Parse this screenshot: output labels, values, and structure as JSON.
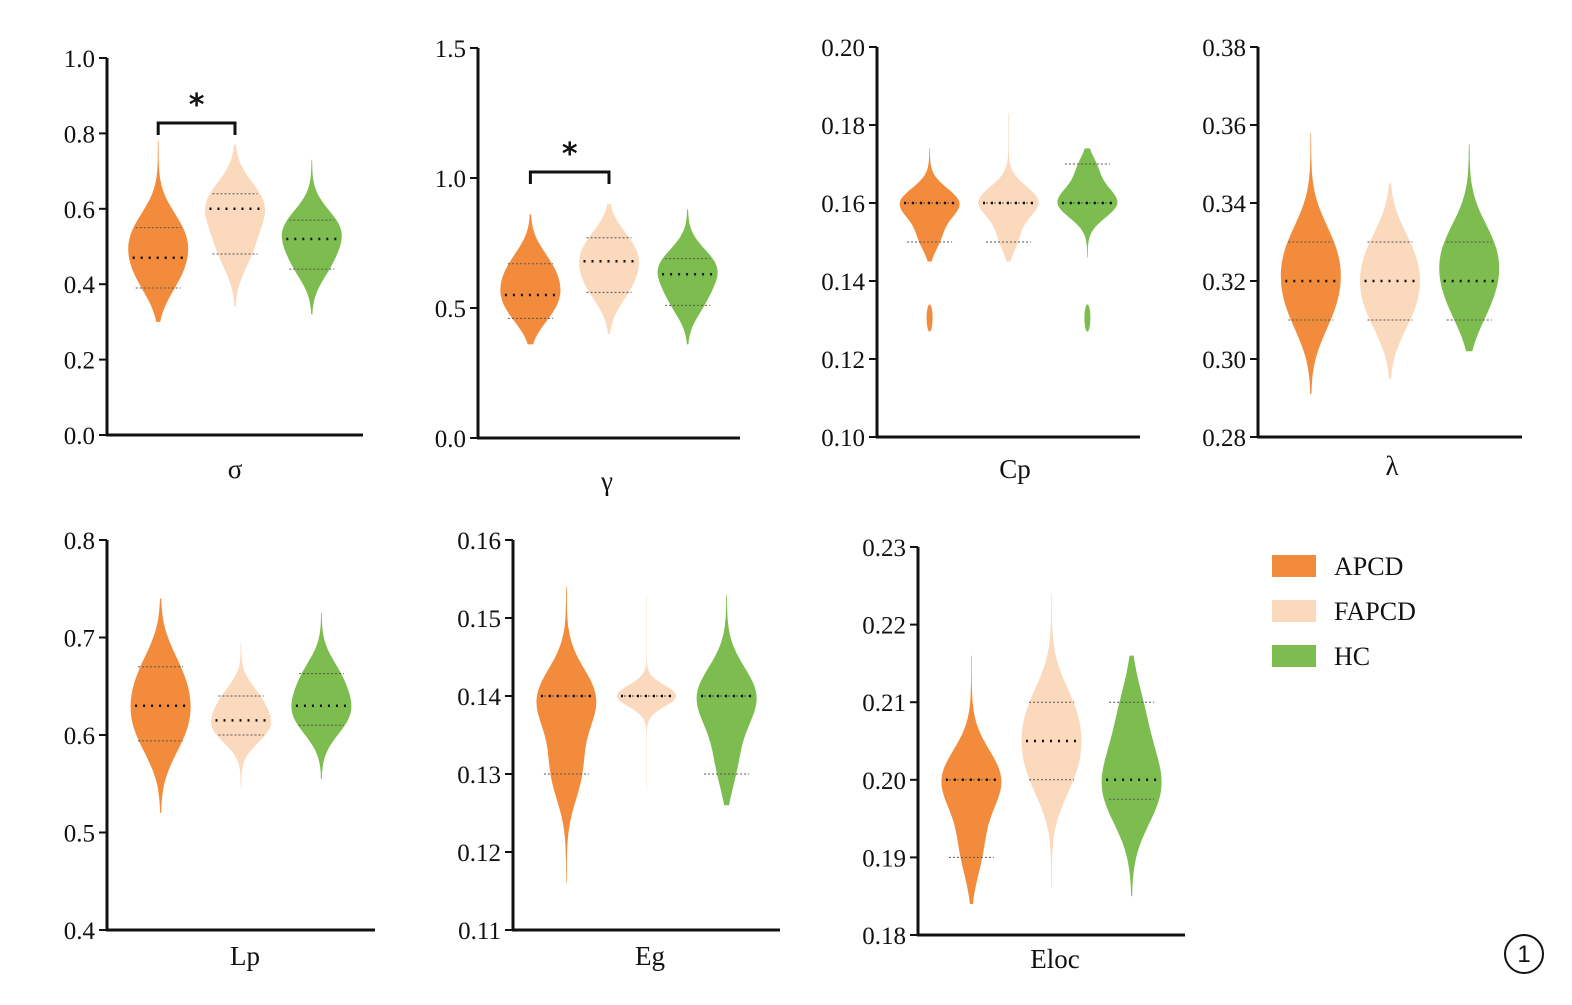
{
  "colors": {
    "APCD": "#f28c3c",
    "FAPCD": "#fbd9bd",
    "HC": "#7dbd4f",
    "axis": "#111111"
  },
  "legend": [
    {
      "name": "APCD",
      "label": "APCD",
      "color_key": "APCD"
    },
    {
      "name": "FAPCD",
      "label": "FAPCD",
      "color_key": "FAPCD"
    },
    {
      "name": "HC",
      "label": "HC",
      "color_key": "HC"
    }
  ],
  "panel_number": "1",
  "chart_data": [
    {
      "type": "violin",
      "xlabel": "σ",
      "ylim": [
        0,
        1.0
      ],
      "ticks": [
        "0.0",
        "0.2",
        "0.4",
        "0.6",
        "0.8",
        "1.0"
      ],
      "groups": [
        "APCD",
        "FAPCD",
        "HC"
      ],
      "range": [
        [
          0.3,
          0.78
        ],
        [
          0.34,
          0.77
        ],
        [
          0.32,
          0.73
        ]
      ],
      "quartiles": [
        [
          0.39,
          0.47,
          0.55
        ],
        [
          0.48,
          0.6,
          0.64
        ],
        [
          0.44,
          0.52,
          0.57
        ]
      ],
      "significance": {
        "pair": [
          0,
          1
        ],
        "label": "*"
      }
    },
    {
      "type": "violin",
      "xlabel": "γ",
      "ylim": [
        0,
        1.5
      ],
      "ticks": [
        "0.0",
        "0.5",
        "1.0",
        "1.5"
      ],
      "groups": [
        "APCD",
        "FAPCD",
        "HC"
      ],
      "range": [
        [
          0.36,
          0.86
        ],
        [
          0.4,
          0.9
        ],
        [
          0.36,
          0.88
        ]
      ],
      "quartiles": [
        [
          0.46,
          0.55,
          0.67
        ],
        [
          0.56,
          0.68,
          0.77
        ],
        [
          0.51,
          0.63,
          0.69
        ]
      ],
      "significance": {
        "pair": [
          0,
          1
        ],
        "label": "*"
      }
    },
    {
      "type": "violin",
      "xlabel": "Cp",
      "ylim": [
        0.1,
        0.2
      ],
      "ticks": [
        "0.10",
        "0.12",
        "0.14",
        "0.16",
        "0.18",
        "0.20"
      ],
      "groups": [
        "APCD",
        "FAPCD",
        "HC"
      ],
      "range": [
        [
          0.145,
          0.174
        ],
        [
          0.145,
          0.183
        ],
        [
          0.146,
          0.174
        ]
      ],
      "quartiles": [
        [
          0.15,
          0.16,
          0.16
        ],
        [
          0.15,
          0.16,
          0.16
        ],
        [
          0.16,
          0.16,
          0.17
        ]
      ],
      "outliers": [
        [
          0.127,
          0.134
        ],
        [],
        [
          0.127,
          0.134
        ]
      ]
    },
    {
      "type": "violin",
      "xlabel": "λ",
      "ylim": [
        0.28,
        0.38
      ],
      "ticks": [
        "0.28",
        "0.30",
        "0.32",
        "0.34",
        "0.36",
        "0.38"
      ],
      "groups": [
        "APCD",
        "FAPCD",
        "HC"
      ],
      "range": [
        [
          0.291,
          0.358
        ],
        [
          0.295,
          0.345
        ],
        [
          0.302,
          0.355
        ]
      ],
      "quartiles": [
        [
          0.31,
          0.32,
          0.33
        ],
        [
          0.31,
          0.32,
          0.33
        ],
        [
          0.31,
          0.32,
          0.33
        ]
      ]
    },
    {
      "type": "violin",
      "xlabel": "Lp",
      "ylim": [
        0.4,
        0.8
      ],
      "ticks": [
        "0.4",
        "0.5",
        "0.6",
        "0.7",
        "0.8"
      ],
      "groups": [
        "APCD",
        "FAPCD",
        "HC"
      ],
      "range": [
        [
          0.52,
          0.74
        ],
        [
          0.545,
          0.695
        ],
        [
          0.555,
          0.725
        ]
      ],
      "quartiles": [
        [
          0.594,
          0.63,
          0.67
        ],
        [
          0.6,
          0.615,
          0.64
        ],
        [
          0.61,
          0.63,
          0.663
        ]
      ]
    },
    {
      "type": "violin",
      "xlabel": "Eg",
      "ylim": [
        0.11,
        0.16
      ],
      "ticks": [
        "0.11",
        "0.12",
        "0.13",
        "0.14",
        "0.15",
        "0.16"
      ],
      "groups": [
        "APCD",
        "FAPCD",
        "HC"
      ],
      "range": [
        [
          0.116,
          0.154
        ],
        [
          0.128,
          0.153
        ],
        [
          0.126,
          0.153
        ]
      ],
      "quartiles": [
        [
          0.13,
          0.14,
          0.14
        ],
        [
          0.14,
          0.14,
          0.14
        ],
        [
          0.13,
          0.14,
          0.14
        ]
      ]
    },
    {
      "type": "violin",
      "xlabel": "Eloc",
      "ylim": [
        0.18,
        0.23
      ],
      "ticks": [
        "0.18",
        "0.19",
        "0.20",
        "0.21",
        "0.22",
        "0.23"
      ],
      "groups": [
        "APCD",
        "FAPCD",
        "HC"
      ],
      "range": [
        [
          0.184,
          0.216
        ],
        [
          0.186,
          0.224
        ],
        [
          0.185,
          0.216
        ]
      ],
      "quartiles": [
        [
          0.19,
          0.2,
          0.2
        ],
        [
          0.2,
          0.205,
          0.21
        ],
        [
          0.1975,
          0.2,
          0.21
        ]
      ]
    }
  ]
}
